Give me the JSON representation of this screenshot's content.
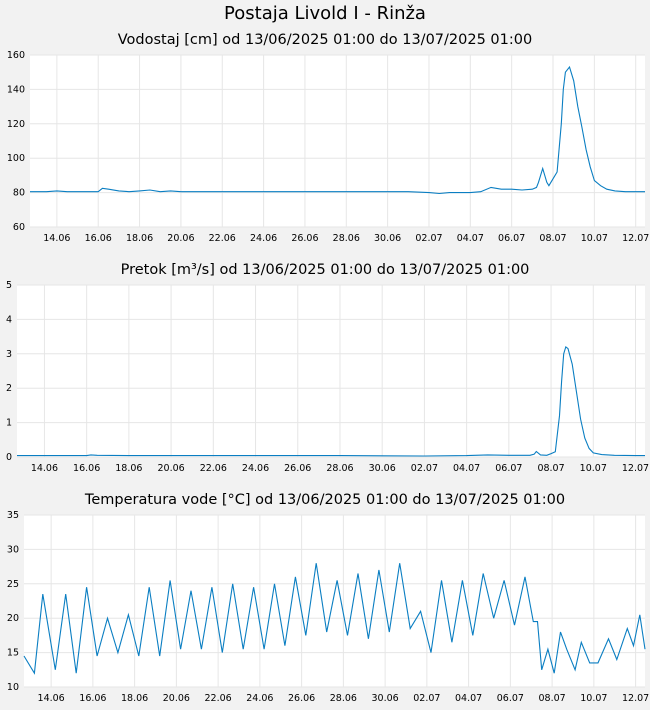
{
  "title": "Postaja Livold I - Rinža",
  "series_color": "#0a7ec2",
  "chart_data": [
    {
      "type": "line",
      "title": "Vodostaj [cm] od 13/06/2025 01:00 do 13/07/2025 01:00",
      "xlabel": "",
      "ylabel": "",
      "ylim": [
        60,
        160
      ],
      "yticks": [
        60,
        80,
        100,
        120,
        140,
        160
      ],
      "xlim": [
        12.7,
        42.45
      ],
      "xticks": [
        14,
        16,
        18,
        20,
        22,
        24,
        26,
        28,
        30,
        32,
        34,
        36,
        38,
        40,
        42
      ],
      "xtick_labels": [
        "14.06",
        "16.06",
        "18.06",
        "20.06",
        "22.06",
        "24.06",
        "26.06",
        "28.06",
        "30.06",
        "02.07",
        "04.07",
        "06.07",
        "08.07",
        "10.07",
        "12.07"
      ],
      "grid": true,
      "x": [
        12.7,
        13.0,
        13.5,
        14.0,
        14.5,
        15.0,
        15.5,
        16.0,
        16.2,
        16.5,
        17.0,
        17.5,
        18.0,
        18.5,
        19.0,
        19.5,
        20.0,
        21.0,
        22.0,
        23.0,
        24.0,
        25.0,
        26.0,
        27.0,
        28.0,
        29.0,
        30.0,
        31.0,
        32.0,
        32.5,
        33.0,
        33.5,
        34.0,
        34.5,
        35.0,
        35.5,
        36.0,
        36.5,
        37.0,
        37.2,
        37.3,
        37.5,
        37.7,
        37.8,
        38.0,
        38.2,
        38.4,
        38.5,
        38.6,
        38.8,
        39.0,
        39.2,
        39.4,
        39.6,
        39.8,
        40.0,
        40.3,
        40.6,
        41.0,
        41.5,
        42.0,
        42.45
      ],
      "y": [
        80.5,
        80.5,
        80.5,
        81,
        80.5,
        80.5,
        80.5,
        80.5,
        82.5,
        82,
        81,
        80.5,
        81,
        81.5,
        80.5,
        81,
        80.5,
        80.5,
        80.5,
        80.5,
        80.5,
        80.5,
        80.5,
        80.5,
        80.5,
        80.5,
        80.5,
        80.5,
        80,
        79.5,
        80,
        80,
        80,
        80.5,
        83,
        82,
        82,
        81.5,
        82,
        83,
        86,
        94,
        86,
        84,
        88,
        92,
        120,
        140,
        150,
        153,
        145,
        130,
        118,
        105,
        95,
        87,
        84,
        82,
        81,
        80.5,
        80.5,
        80.5
      ]
    },
    {
      "type": "line",
      "title": "Pretok [m³/s] od 13/06/2025 01:00 do 13/07/2025 01:00",
      "xlabel": "",
      "ylabel": "",
      "ylim": [
        0,
        5
      ],
      "yticks": [
        0,
        1,
        2,
        3,
        4,
        5
      ],
      "xlim": [
        12.7,
        42.45
      ],
      "xticks": [
        14,
        16,
        18,
        20,
        22,
        24,
        26,
        28,
        30,
        32,
        34,
        36,
        38,
        40,
        42
      ],
      "xtick_labels": [
        "14.06",
        "16.06",
        "18.06",
        "20.06",
        "22.06",
        "24.06",
        "26.06",
        "28.06",
        "30.06",
        "02.07",
        "04.07",
        "06.07",
        "08.07",
        "10.07",
        "12.07"
      ],
      "grid": true,
      "x": [
        12.7,
        14.0,
        16.0,
        16.2,
        16.5,
        18.0,
        20.0,
        24.0,
        28.0,
        32.0,
        34.0,
        35.0,
        36.0,
        37.0,
        37.2,
        37.3,
        37.5,
        37.8,
        38.0,
        38.2,
        38.4,
        38.5,
        38.6,
        38.7,
        38.8,
        39.0,
        39.2,
        39.4,
        39.6,
        39.8,
        40.0,
        40.4,
        41.0,
        42.0,
        42.45
      ],
      "y": [
        0.04,
        0.04,
        0.04,
        0.06,
        0.05,
        0.04,
        0.04,
        0.04,
        0.04,
        0.03,
        0.04,
        0.06,
        0.05,
        0.05,
        0.08,
        0.16,
        0.06,
        0.05,
        0.1,
        0.15,
        1.2,
        2.2,
        3.0,
        3.2,
        3.15,
        2.7,
        1.9,
        1.1,
        0.55,
        0.25,
        0.12,
        0.07,
        0.05,
        0.04,
        0.04
      ]
    },
    {
      "type": "line",
      "title": "Temperatura vode [°C] od 13/06/2025 01:00 do 13/07/2025 01:00",
      "xlabel": "",
      "ylabel": "",
      "ylim": [
        10,
        35
      ],
      "yticks": [
        10,
        15,
        20,
        25,
        30,
        35
      ],
      "xlim": [
        12.7,
        42.45
      ],
      "xticks": [
        14,
        16,
        18,
        20,
        22,
        24,
        26,
        28,
        30,
        32,
        34,
        36,
        38,
        40,
        42
      ],
      "xtick_labels": [
        "14.06",
        "16.06",
        "18.06",
        "20.06",
        "22.06",
        "24.06",
        "26.06",
        "28.06",
        "30.06",
        "02.07",
        "04.07",
        "06.07",
        "08.07",
        "10.07",
        "12.07"
      ],
      "grid": true,
      "x": [
        12.7,
        13.2,
        13.6,
        14.2,
        14.7,
        15.2,
        15.7,
        16.2,
        16.7,
        17.2,
        17.7,
        18.2,
        18.7,
        19.2,
        19.7,
        20.2,
        20.7,
        21.2,
        21.7,
        22.2,
        22.7,
        23.2,
        23.7,
        24.2,
        24.7,
        25.2,
        25.7,
        26.2,
        26.7,
        27.2,
        27.7,
        28.2,
        28.7,
        29.2,
        29.7,
        30.2,
        30.7,
        31.2,
        31.7,
        32.2,
        32.7,
        33.2,
        33.7,
        34.2,
        34.7,
        35.2,
        35.7,
        36.2,
        36.7,
        37.1,
        37.3,
        37.5,
        37.8,
        38.1,
        38.4,
        38.7,
        39.1,
        39.4,
        39.8,
        40.2,
        40.7,
        41.1,
        41.6,
        41.9,
        42.2,
        42.45
      ],
      "y": [
        14.5,
        12,
        23.5,
        12.5,
        23.5,
        12,
        24.5,
        14.5,
        20,
        15,
        20.5,
        14.5,
        24.5,
        14.5,
        25.5,
        15.5,
        24,
        15.5,
        24.5,
        15,
        25,
        15.5,
        24.5,
        15.5,
        25,
        16,
        26,
        17.5,
        28,
        18,
        25.5,
        17.5,
        26.5,
        17,
        27,
        18,
        28,
        18.5,
        21,
        15,
        25.5,
        16.5,
        25.5,
        17.5,
        26.5,
        20,
        25.5,
        19,
        26,
        19.5,
        19.5,
        12.5,
        15.5,
        12,
        18,
        15.5,
        12.5,
        16.5,
        13.5,
        13.5,
        17,
        14,
        18.5,
        16,
        20.5,
        15.5
      ]
    }
  ]
}
